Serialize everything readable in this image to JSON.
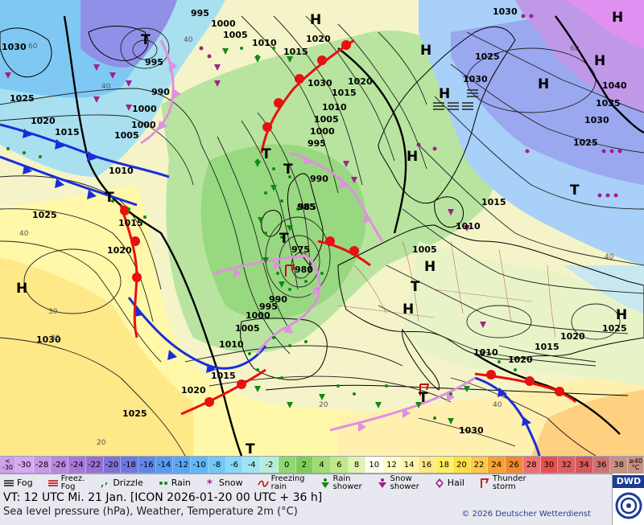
{
  "map": {
    "pressure_centers": [
      {
        "type": "H",
        "label": "H"
      },
      {
        "type": "H",
        "label": "H"
      },
      {
        "type": "H",
        "label": "H"
      },
      {
        "type": "H",
        "label": "H"
      },
      {
        "type": "H",
        "label": "H"
      },
      {
        "type": "H",
        "label": "H"
      },
      {
        "type": "H",
        "label": "H"
      },
      {
        "type": "H",
        "label": "H"
      },
      {
        "type": "H",
        "label": "H"
      },
      {
        "type": "H",
        "label": "H"
      },
      {
        "type": "H",
        "label": "H"
      },
      {
        "type": "T",
        "label": "T"
      },
      {
        "type": "T",
        "label": "T"
      },
      {
        "type": "T",
        "label": "T"
      },
      {
        "type": "T",
        "label": "T"
      },
      {
        "type": "T",
        "label": "T"
      },
      {
        "type": "T",
        "label": "T"
      },
      {
        "type": "T",
        "label": "T"
      },
      {
        "type": "T",
        "label": "T"
      },
      {
        "type": "T",
        "label": "T"
      }
    ],
    "isobar_labels": [
      "995",
      "1000",
      "1005",
      "1010",
      "1020",
      "1030",
      "1025",
      "1015",
      "1020",
      "1030",
      "1030",
      "1025",
      "1015",
      "1040",
      "1035",
      "1030",
      "1025",
      "1020",
      "1015",
      "1010",
      "1005",
      "1000",
      "995",
      "990",
      "985",
      "980",
      "975",
      "990",
      "995",
      "1000",
      "1005",
      "1010",
      "1015",
      "1020",
      "1025",
      "1030",
      "1000",
      "1005",
      "1010",
      "1015",
      "1020",
      "1025",
      "1030",
      "985",
      "990",
      "995",
      "1000",
      "1005",
      "1010",
      "1015",
      "1020",
      "1010",
      "1015",
      "1020",
      "1025",
      "1030"
    ],
    "temperature_labels": [
      "40",
      "30",
      "20",
      "40",
      "60",
      "40",
      "20",
      "40",
      "60",
      "40",
      "30"
    ]
  },
  "colorbar": {
    "low_end": [
      "<",
      "-30"
    ],
    "values": [
      "-30",
      "-28",
      "-26",
      "-24",
      "-22",
      "-20",
      "-18",
      "-16",
      "-14",
      "-12",
      "-10",
      "-8",
      "-6",
      "-4",
      "-2",
      "0",
      "2",
      "4",
      "6",
      "8",
      "10",
      "12",
      "14",
      "16",
      "18",
      "20",
      "22",
      "24",
      "26",
      "28",
      "30",
      "32",
      "34",
      "36",
      "38"
    ],
    "colors": [
      "#d8a8f0",
      "#c898e8",
      "#b888e0",
      "#a878d8",
      "#9870d0",
      "#8070d8",
      "#7078e0",
      "#6088e8",
      "#5898f0",
      "#58a8f4",
      "#60b8f8",
      "#70c8f8",
      "#88d8f8",
      "#a0e4f0",
      "#b8ecd8",
      "#90d870",
      "#80cc58",
      "#a0dc70",
      "#c0e888",
      "#e0f4b0",
      "#fffff0",
      "#fffcc8",
      "#fff4a8",
      "#ffe888",
      "#fff060",
      "#ffe040",
      "#ffc848",
      "#f8a030",
      "#f08830",
      "#f07070",
      "#e85050",
      "#e06060",
      "#d85858",
      "#d07070",
      "#c89080"
    ],
    "high_end": [
      "≥40",
      "°C"
    ]
  },
  "legend": [
    {
      "symbol": "fog",
      "label": "Fog"
    },
    {
      "symbol": "freezing-fog",
      "label": "Freez.\nFog"
    },
    {
      "symbol": "drizzle",
      "label": "Drizzle"
    },
    {
      "symbol": "rain",
      "label": "Rain"
    },
    {
      "symbol": "snow",
      "label": "Snow"
    },
    {
      "symbol": "freezing-rain",
      "label": "Freezing\nrain"
    },
    {
      "symbol": "rain-shower",
      "label": "Rain\nshower"
    },
    {
      "symbol": "snow-shower",
      "label": "Snow\nshower"
    },
    {
      "symbol": "hail",
      "label": "Hail"
    },
    {
      "symbol": "thunderstorm",
      "label": "Thunder\nstorm"
    }
  ],
  "info": {
    "valid_time": "VT: 12 UTC Mi.   21 Jan. [ICON 2026-01-20  00 UTC + 36 h]",
    "description": "Sea level pressure (hPa), Weather, Temperature 2m (°C)",
    "copyright": "© 2026 Deutscher Wetterdienst",
    "logo_text": "DWD"
  },
  "colors": {
    "cold_front": "#1a2ed8",
    "warm_front": "#e81010",
    "occluded_front": "#e090e0",
    "snow_symbol": "#a0208a",
    "rain_symbol": "#108a10"
  }
}
